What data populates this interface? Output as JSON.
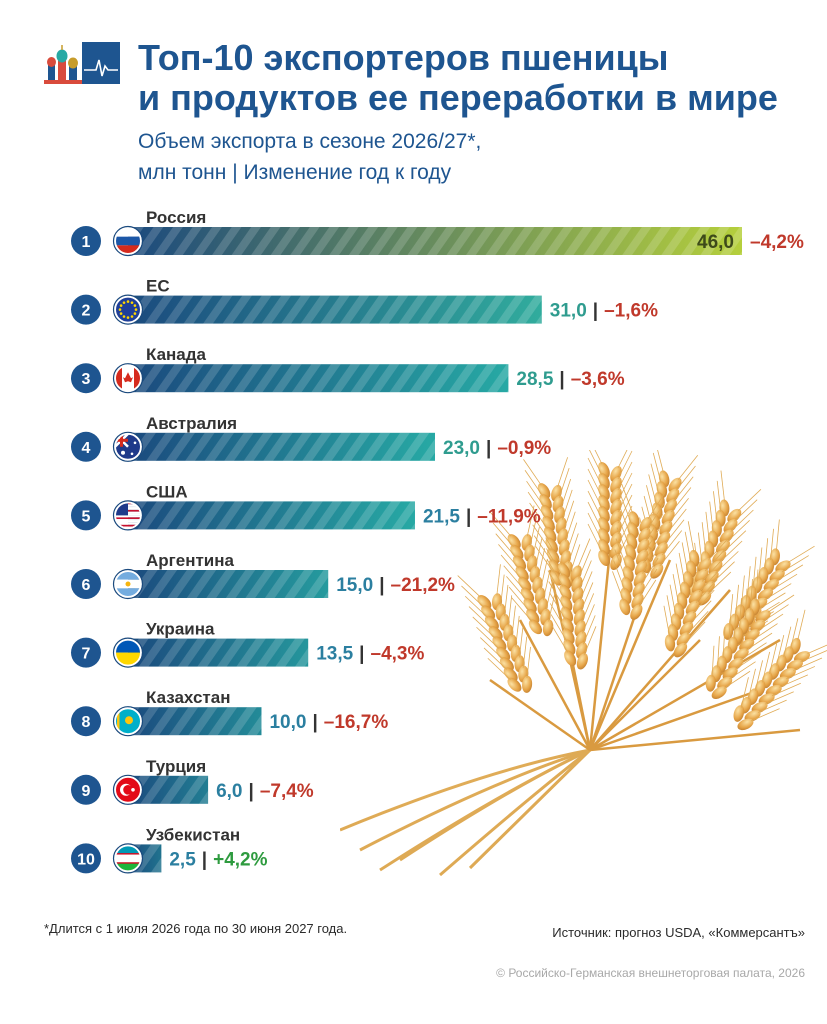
{
  "header": {
    "title_line1": "Топ-10 экспортеров пшеницы",
    "title_line2": "и продуктов ее переработки в мире",
    "subtitle_line1": "Объем экспорта в сезоне 2026/27*,",
    "subtitle_line2": "млн тонн | Изменение год к году"
  },
  "colors": {
    "title": "#1e5590",
    "bar_dark": "#1b4a7e",
    "bar_teal": "#27a9a4",
    "bar_lime": "#b5cf3c",
    "negative": "#c0392b",
    "positive": "#2e9b3f",
    "rank_circle": "#1e5590"
  },
  "chart_data": {
    "type": "bar",
    "orientation": "horizontal",
    "title": "Топ-10 экспортеров пшеницы и продуктов ее переработки в мире",
    "subtitle": "Объем экспорта в сезоне 2026/27*, млн тонн | Изменение год к году",
    "ranks": [
      "1",
      "2",
      "3",
      "4",
      "5",
      "6",
      "7",
      "8",
      "9",
      "10"
    ],
    "categories": [
      "Россия",
      "ЕС",
      "Канада",
      "Австралия",
      "США",
      "Аргентина",
      "Украина",
      "Казахстан",
      "Турция",
      "Узбекистан"
    ],
    "values": [
      46.0,
      31.0,
      28.5,
      23.0,
      21.5,
      15.0,
      13.5,
      10.0,
      6.0,
      2.5
    ],
    "value_labels": [
      "46,0",
      "31,0",
      "28,5",
      "23,0",
      "21,5",
      "15,0",
      "13,5",
      "10,0",
      "6,0",
      "2,5"
    ],
    "change_labels": [
      "–4,2%",
      "–1,6%",
      "–3,6%",
      "–0,9%",
      "–11,9%",
      "–21,2%",
      "–4,3%",
      "–16,7%",
      "–7,4%",
      "+4,2%"
    ],
    "change_values": [
      -4.2,
      -1.6,
      -3.6,
      -0.9,
      -11.9,
      -21.2,
      -4.3,
      -16.7,
      -7.4,
      4.2
    ],
    "flag_icons": [
      "russia-flag-icon",
      "eu-flag-icon",
      "canada-flag-icon",
      "australia-flag-icon",
      "usa-flag-icon",
      "argentina-flag-icon",
      "ukraine-flag-icon",
      "kazakhstan-flag-icon",
      "turkey-flag-icon",
      "uzbekistan-flag-icon"
    ],
    "separator": "|",
    "xlim": [
      0,
      46
    ]
  },
  "footer": {
    "footnote": "*Длится с 1 июля 2026 года по 30 июня 2027 года.",
    "source": "Источник: прогноз USDA, «Коммерсантъ»",
    "copyright": "© Российско-Германская внешнеторговая палата, 2026"
  }
}
